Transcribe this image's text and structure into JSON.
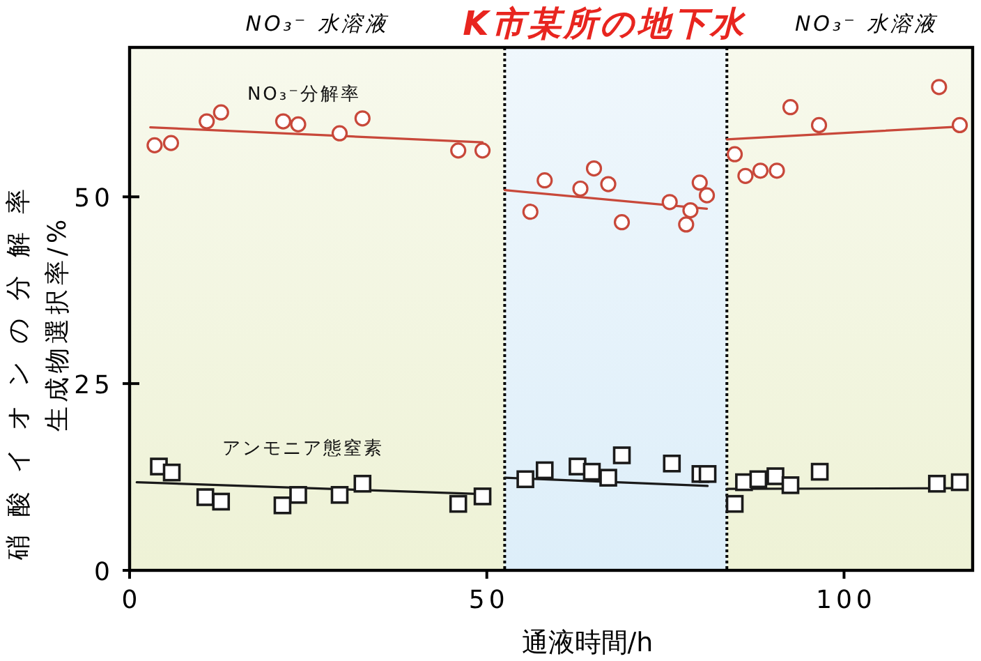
{
  "chart_data": {
    "type": "scatter",
    "xlabel": "通液時間/h",
    "ylabel": "硝酸イオンの分解率生成物選択率/%",
    "xlim": [
      0,
      118
    ],
    "ylim": [
      0,
      70
    ],
    "xticks": [
      0,
      50,
      100
    ],
    "yticks": [
      0,
      25,
      50
    ],
    "grid": false,
    "legend": false,
    "bands": [
      {
        "axis": "x",
        "from": 0,
        "to": 52.5,
        "label": "NO₃⁻ 水溶液",
        "color": "#eef2d6"
      },
      {
        "axis": "x",
        "from": 52.5,
        "to": 83.6,
        "label": "K市某所の地下水",
        "color": "#ddeef9"
      },
      {
        "axis": "x",
        "from": 83.6,
        "to": 118,
        "label": "NO₃⁻ 水溶液",
        "color": "#eef2d6"
      }
    ],
    "ref_lines": [
      {
        "axis": "x",
        "value": 52.5,
        "line_style": "dotted",
        "color": "#000000"
      },
      {
        "axis": "x",
        "value": 83.6,
        "line_style": "dotted",
        "color": "#000000"
      }
    ],
    "series": [
      {
        "type": "line",
        "color": "#c8483a",
        "line_style": "solid",
        "x": [
          2.9,
          49.4
        ],
        "values": [
          59.3,
          57.3
        ]
      },
      {
        "type": "line",
        "color": "#c8483a",
        "line_style": "solid",
        "x": [
          52.5,
          80.8
        ],
        "values": [
          50.9,
          48.4
        ]
      },
      {
        "type": "line",
        "color": "#c8483a",
        "line_style": "solid",
        "x": [
          83.6,
          116.2
        ],
        "values": [
          57.7,
          59.4
        ]
      },
      {
        "type": "line",
        "color": "#1a1a1a",
        "line_style": "solid",
        "x": [
          1.0,
          49.4
        ],
        "values": [
          11.8,
          10.2
        ]
      },
      {
        "type": "line",
        "color": "#1a1a1a",
        "line_style": "solid",
        "x": [
          52.5,
          80.9
        ],
        "values": [
          12.4,
          11.3
        ]
      },
      {
        "type": "line",
        "color": "#1a1a1a",
        "line_style": "solid",
        "x": [
          83.6,
          116.2
        ],
        "values": [
          10.9,
          11.0
        ]
      },
      {
        "name": "NO₃⁻分解率",
        "marker": "circle",
        "color": "#c8483a",
        "x": [
          3.5,
          5.8,
          10.8,
          12.8,
          21.5,
          23.6,
          29.4,
          32.6,
          46.0,
          49.4,
          56.1,
          58.1,
          63.1,
          65.0,
          67.0,
          68.9,
          75.6,
          77.9,
          78.5,
          79.8,
          80.8,
          84.7,
          86.2,
          88.3,
          90.6,
          92.5,
          96.5,
          113.3,
          116.2
        ],
        "values": [
          56.9,
          57.2,
          60.1,
          61.3,
          60.1,
          59.7,
          58.5,
          60.5,
          56.2,
          56.2,
          48.0,
          52.2,
          51.1,
          53.8,
          51.7,
          46.6,
          49.3,
          46.3,
          48.2,
          51.9,
          50.2,
          55.7,
          52.8,
          53.5,
          53.5,
          62.0,
          59.6,
          64.7,
          59.6
        ]
      },
      {
        "name": "アンモニア態窒素",
        "marker": "square",
        "color": "#1a1a1a",
        "x": [
          4.1,
          5.9,
          10.6,
          12.8,
          21.4,
          23.6,
          29.4,
          32.6,
          46.0,
          49.4,
          55.4,
          58.1,
          62.7,
          64.7,
          67.0,
          68.9,
          75.9,
          79.9,
          80.9,
          84.7,
          86.0,
          88.0,
          90.4,
          92.5,
          96.6,
          113.0,
          116.2
        ],
        "values": [
          13.9,
          13.1,
          9.8,
          9.2,
          8.7,
          10.1,
          10.1,
          11.6,
          8.9,
          9.9,
          12.2,
          13.4,
          13.9,
          13.2,
          12.4,
          15.4,
          14.3,
          12.9,
          12.9,
          8.9,
          11.8,
          12.2,
          12.6,
          11.4,
          13.2,
          11.6,
          11.8
        ]
      }
    ]
  }
}
